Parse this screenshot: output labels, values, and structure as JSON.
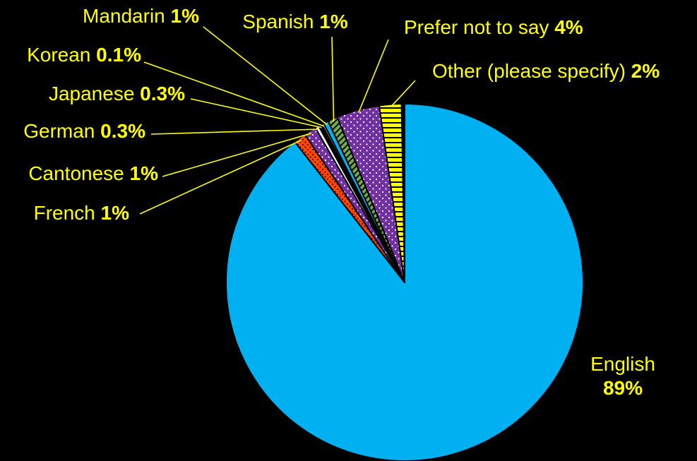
{
  "chart_data": {
    "type": "pie",
    "slices": [
      {
        "label": "English",
        "pct": 89,
        "pct_text": "89%",
        "color": "#00B0F0",
        "pattern": "solid",
        "label_style": "inside-stacked"
      },
      {
        "label": "French",
        "pct": 1,
        "pct_text": "1%",
        "color": "#FF4500",
        "pattern": "dots"
      },
      {
        "label": "Cantonese",
        "pct": 1,
        "pct_text": "1%",
        "color": "#7030A0",
        "pattern": "dots"
      },
      {
        "label": "German",
        "pct": 0.3,
        "pct_text": "0.3%",
        "color": "#FFFFFF",
        "pattern": "solid"
      },
      {
        "label": "Japanese",
        "pct": 0.3,
        "pct_text": "0.3%",
        "color": "#000000",
        "pattern": "solid"
      },
      {
        "label": "Korean",
        "pct": 0.1,
        "pct_text": "0.1%",
        "color": "#FFFFFF",
        "pattern": "solid"
      },
      {
        "label": "Mandarin",
        "pct": 1,
        "pct_text": "1%",
        "color": "#00B0F0",
        "pattern": "solid"
      },
      {
        "label": "Spanish",
        "pct": 1,
        "pct_text": "1%",
        "color": "#70AD47",
        "pattern": "stripes"
      },
      {
        "label": "Prefer not to say",
        "pct": 4,
        "pct_text": "4%",
        "color": "#7030A0",
        "pattern": "dots"
      },
      {
        "label": "Other (please specify)",
        "pct": 2,
        "pct_text": "2%",
        "color": "#FFFF00",
        "pattern": "hstripes"
      }
    ],
    "legend": "none",
    "colors": {
      "background": "#000000",
      "label": "#FFFF00",
      "leader": "#FFFF00",
      "slice_border": "#000000"
    }
  }
}
